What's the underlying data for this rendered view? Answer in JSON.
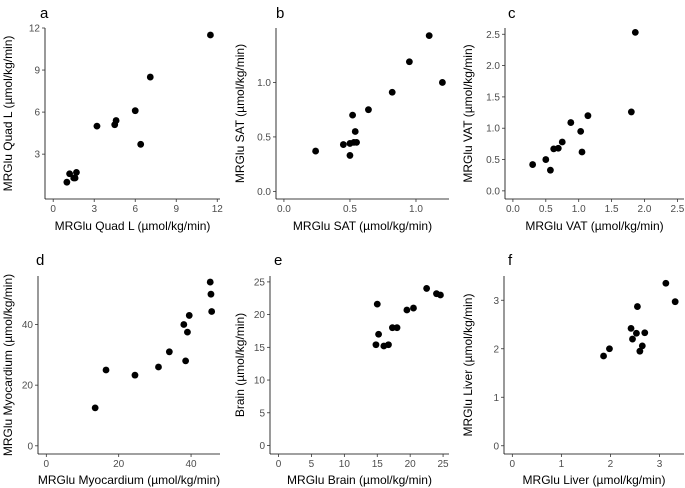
{
  "chart_data": [
    {
      "type": "scatter",
      "panel_label": "a",
      "xlabel": "MRGlu Quad L (µmol/kg/min)",
      "ylabel": "MRGlu Quad L (µmol/kg/min)",
      "xlim": [
        -0.6,
        12.2
      ],
      "ylim": [
        -0.2,
        12.0
      ],
      "xticks": [
        0,
        3,
        6,
        9,
        12
      ],
      "xtick_labels": [
        "0",
        "3",
        "6",
        "9",
        "12"
      ],
      "yticks": [
        3,
        6,
        9,
        12
      ],
      "ytick_labels": [
        "3",
        "6",
        "9",
        "12"
      ],
      "x": [
        1.0,
        1.2,
        1.5,
        1.6,
        1.7,
        3.2,
        4.5,
        4.6,
        6.0,
        6.4,
        7.1,
        11.5
      ],
      "y": [
        1.0,
        1.6,
        1.3,
        1.3,
        1.7,
        5.0,
        5.1,
        5.4,
        6.1,
        3.7,
        8.5,
        11.5
      ],
      "marker_color": "#000000"
    },
    {
      "type": "scatter",
      "panel_label": "b",
      "xlabel": "MRGlu SAT (µmol/kg/min)",
      "ylabel": "MRGlu SAT (µmol/kg/min)",
      "xlim": [
        -0.06,
        1.25
      ],
      "ylim": [
        -0.07,
        1.5
      ],
      "xticks": [
        0.0,
        0.5,
        1.0
      ],
      "xtick_labels": [
        "0.0",
        "0.5",
        "1.0"
      ],
      "yticks": [
        0.0,
        0.5,
        1.0
      ],
      "ytick_labels": [
        "0.0",
        "0.5",
        "1.0"
      ],
      "x": [
        0.24,
        0.45,
        0.5,
        0.5,
        0.52,
        0.53,
        0.54,
        0.55,
        0.64,
        0.82,
        0.95,
        1.1,
        1.2
      ],
      "y": [
        0.37,
        0.43,
        0.44,
        0.33,
        0.7,
        0.45,
        0.55,
        0.45,
        0.75,
        0.91,
        1.19,
        1.43,
        1.0
      ],
      "marker_color": "#000000"
    },
    {
      "type": "scatter",
      "panel_label": "c",
      "xlabel": "MRGlu VAT (µmol/kg/min)",
      "ylabel": "MRGlu VAT (µmol/kg/min)",
      "xlim": [
        -0.12,
        2.6
      ],
      "ylim": [
        -0.13,
        2.6
      ],
      "xticks": [
        0.0,
        0.5,
        1.0,
        1.5,
        2.0,
        2.5
      ],
      "xtick_labels": [
        "0.0",
        "0.5",
        "1.0",
        "1.5",
        "2.0",
        "2.5"
      ],
      "yticks": [
        0.0,
        0.5,
        1.0,
        1.5,
        2.0,
        2.5
      ],
      "ytick_labels": [
        "0.0",
        "0.5",
        "1.0",
        "1.5",
        "2.0",
        "2.5"
      ],
      "x": [
        0.3,
        0.5,
        0.57,
        0.62,
        0.69,
        0.75,
        0.88,
        1.03,
        1.05,
        1.14,
        1.8,
        1.86
      ],
      "y": [
        0.42,
        0.5,
        0.33,
        0.67,
        0.68,
        0.78,
        1.09,
        0.95,
        0.62,
        1.2,
        1.26,
        2.53
      ],
      "marker_color": "#000000"
    },
    {
      "type": "scatter",
      "panel_label": "d",
      "xlabel": "MRGlu Myocardium (µmol/kg/min)",
      "ylabel": "MRGlu Myocardium (µmol/kg/min)",
      "xlim": [
        -2.3,
        48.0
      ],
      "ylim": [
        -2.7,
        56.0
      ],
      "xticks": [
        0,
        20,
        40
      ],
      "xtick_labels": [
        "0",
        "20",
        "40"
      ],
      "yticks": [
        0,
        20,
        40
      ],
      "ytick_labels": [
        "0",
        "20",
        "40"
      ],
      "x": [
        13.5,
        16.5,
        24.5,
        31.0,
        34.0,
        38.0,
        38.5,
        39.0,
        39.5,
        45.3,
        45.5,
        45.7
      ],
      "y": [
        12.5,
        25.0,
        23.3,
        26.0,
        31.0,
        40.0,
        28.0,
        37.5,
        43.0,
        54.0,
        50.0,
        44.3
      ],
      "marker_color": "#000000"
    },
    {
      "type": "scatter",
      "panel_label": "e",
      "xlabel": "MRGlu Brain (µmol/kg/min)",
      "ylabel": "Brain (µmol/kg/min)",
      "xlim": [
        -1.3,
        25.9
      ],
      "ylim": [
        -1.3,
        25.9
      ],
      "xticks": [
        0,
        5,
        10,
        15,
        20,
        25
      ],
      "xtick_labels": [
        "0",
        "5",
        "10",
        "15",
        "20",
        "25"
      ],
      "yticks": [
        0,
        5,
        10,
        15,
        20,
        25
      ],
      "ytick_labels": [
        "0",
        "5",
        "10",
        "15",
        "20",
        "25"
      ],
      "x": [
        14.8,
        15.0,
        15.2,
        16.0,
        16.7,
        17.3,
        18.0,
        19.5,
        20.5,
        22.5,
        24.0,
        24.6
      ],
      "y": [
        15.4,
        21.6,
        17.0,
        15.2,
        15.4,
        18.0,
        18.0,
        20.7,
        21.0,
        24.0,
        23.2,
        23.0
      ],
      "marker_color": "#000000"
    },
    {
      "type": "scatter",
      "panel_label": "f",
      "xlabel": "MRGlu Liver (µmol/kg/min)",
      "ylabel": "MRGlu Liver (µmol/kg/min)",
      "xlim": [
        -0.17,
        3.5
      ],
      "ylim": [
        -0.17,
        3.5
      ],
      "xticks": [
        0,
        1,
        2,
        3
      ],
      "xtick_labels": [
        "0",
        "1",
        "2",
        "3"
      ],
      "yticks": [
        0,
        1,
        2,
        3
      ],
      "ytick_labels": [
        "0",
        "1",
        "2",
        "3"
      ],
      "x": [
        1.86,
        1.98,
        2.42,
        2.45,
        2.53,
        2.55,
        2.6,
        2.65,
        2.7,
        3.13,
        3.32
      ],
      "y": [
        1.85,
        2.0,
        2.42,
        2.2,
        2.32,
        2.87,
        1.95,
        2.06,
        2.33,
        3.35,
        2.97
      ],
      "marker_color": "#000000"
    }
  ]
}
